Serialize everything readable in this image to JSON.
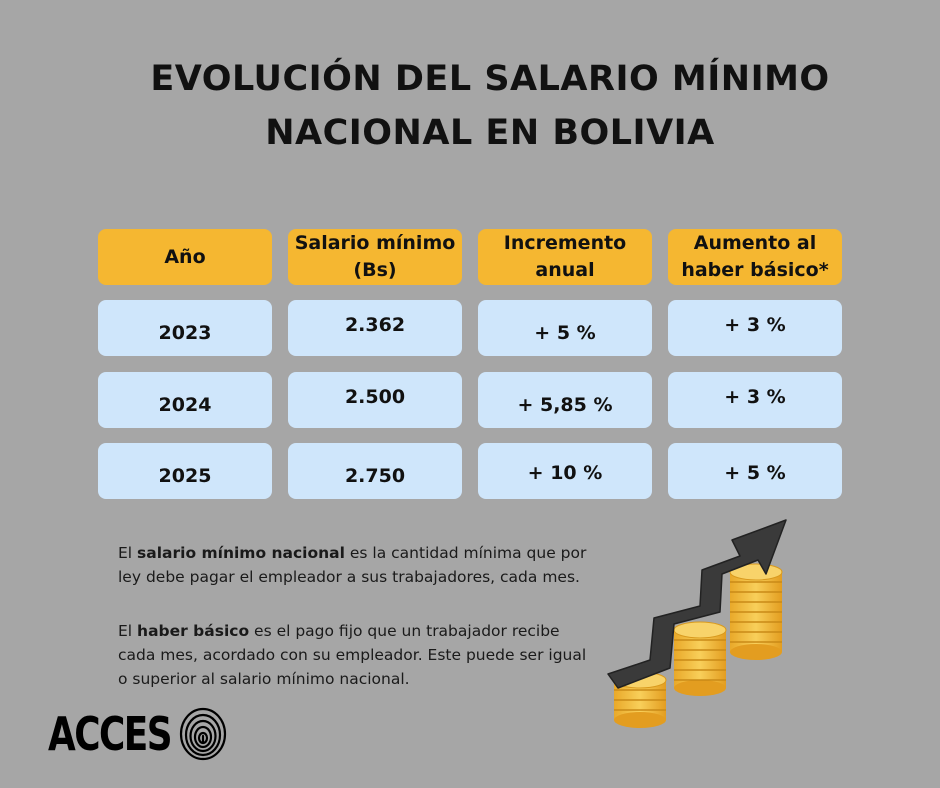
{
  "title": {
    "line1": "EVOLUCIÓN DEL SALARIO MÍNIMO",
    "line2": "NACIONAL EN BOLIVIA"
  },
  "table": {
    "headers": [
      "Año",
      "Salario mínimo (Bs)",
      "Incremento anual",
      "Aumento al haber básico*"
    ],
    "rows": [
      [
        "2023",
        "2.362",
        "+ 5 %",
        "+ 3 %"
      ],
      [
        "2024",
        "2.500",
        "+ 5,85 %",
        "+ 3 %"
      ],
      [
        "2025",
        "2.750",
        "+ 10 %",
        "+ 5 %"
      ]
    ]
  },
  "text": {
    "p1_pre": "El ",
    "p1_bold": "salario mínimo nacional",
    "p1_rest": " es la cantidad mínima  que por ley debe pagar el empleador a sus trabajadores, cada mes.",
    "p2_pre": "El ",
    "p2_bold": "haber básico",
    "p2_rest": " es el pago fijo que un trabajador recibe cada mes, acordado con su empleador. Este puede ser igual o superior al salario mínimo nacional."
  },
  "logo": {
    "text": "ACCES"
  },
  "colors": {
    "background": "#a6a6a6",
    "header": "#f5b731",
    "row": "#cfe6fb",
    "coin": "#f6c54a",
    "arrow": "#3a3a3a"
  },
  "icons": [
    "fingerprint-icon",
    "coins-arrow-illustration"
  ]
}
